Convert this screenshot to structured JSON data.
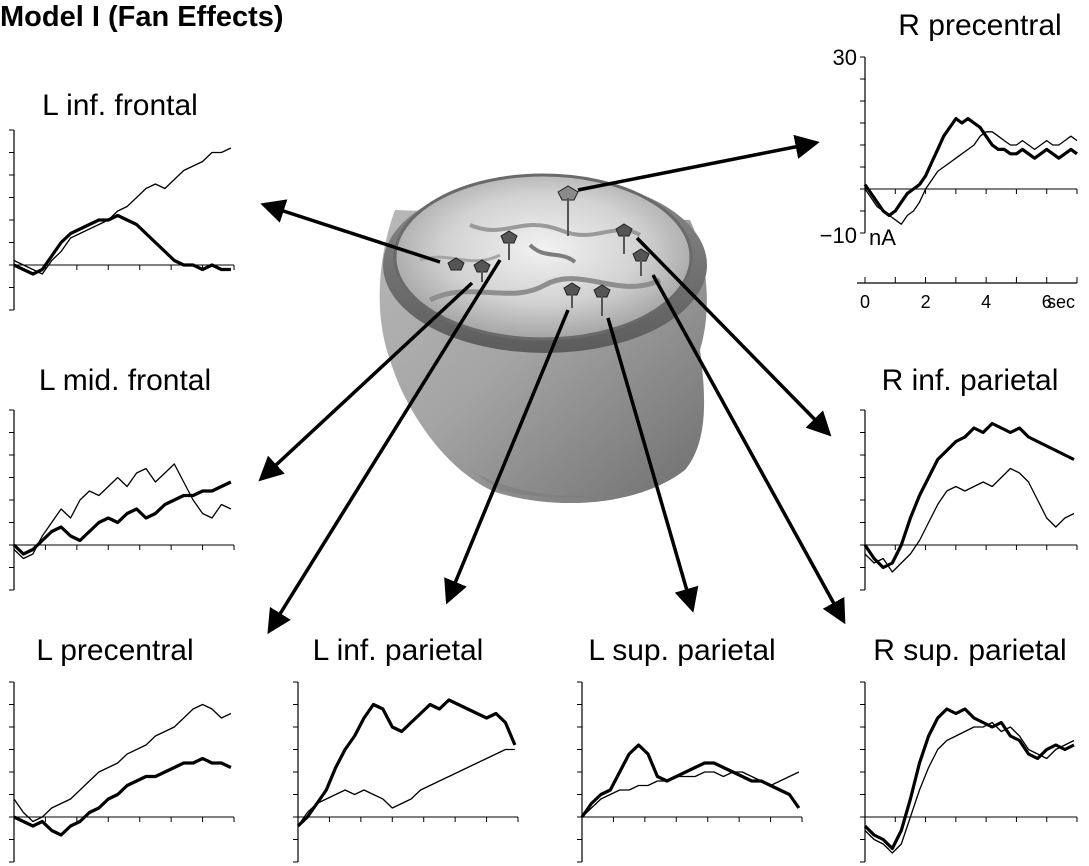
{
  "figure": {
    "title": "Model I (Fan Effects)",
    "line_color": "#000000",
    "brain_icon": "brain-head-icon",
    "legend_note": ""
  },
  "panels": [
    {
      "id": "r-precentral",
      "title": "R precentral",
      "ytick_top": "30",
      "ytick_bottom": "−10",
      "unit": "nA",
      "xticks": [
        "0",
        "2",
        "4",
        "6"
      ],
      "xunit": "sec",
      "ylim": [
        -10,
        30
      ],
      "xlim": [
        0,
        7
      ],
      "series": [
        {
          "x": [
            0,
            0.2,
            0.4,
            0.6,
            0.8,
            1.0,
            1.2,
            1.4,
            1.6,
            1.8,
            2.0,
            2.2,
            2.4,
            2.6,
            2.8,
            3.0,
            3.2,
            3.4,
            3.6,
            3.8,
            4.0,
            4.2,
            4.4,
            4.6,
            4.8,
            5.0,
            5.2,
            5.4,
            5.6,
            5.8,
            6.0,
            6.2,
            6.4,
            6.6,
            6.8,
            7.0
          ],
          "y": [
            1,
            -1,
            -3,
            -5,
            -6,
            -5,
            -3,
            -1,
            0,
            1,
            3,
            6,
            9,
            12,
            14,
            16,
            15,
            16,
            15,
            14,
            12,
            10,
            9,
            9,
            8,
            8,
            9,
            8,
            7,
            8,
            9,
            8,
            7,
            8,
            9,
            8
          ],
          "weight": "thick"
        },
        {
          "x": [
            0,
            0.2,
            0.4,
            0.6,
            0.8,
            1.0,
            1.2,
            1.4,
            1.6,
            1.8,
            2.0,
            2.2,
            2.4,
            2.6,
            2.8,
            3.0,
            3.2,
            3.4,
            3.6,
            3.8,
            4.0,
            4.2,
            4.4,
            4.6,
            4.8,
            5.0,
            5.2,
            5.4,
            5.6,
            5.8,
            6.0,
            6.2,
            6.4,
            6.6,
            6.8,
            7.0
          ],
          "y": [
            0,
            -2,
            -4,
            -5,
            -6,
            -7,
            -8,
            -6,
            -5,
            -3,
            0,
            2,
            4,
            5,
            6,
            7,
            8,
            9,
            10,
            12,
            13,
            13,
            12,
            11,
            10,
            10,
            11,
            10,
            9,
            10,
            11,
            10,
            10,
            11,
            12,
            11
          ],
          "weight": "thin"
        }
      ]
    },
    {
      "id": "l-inf-frontal",
      "title": "L inf. frontal",
      "ylim": [
        -10,
        30
      ],
      "xlim": [
        0,
        7
      ],
      "series": [
        {
          "x": [
            0,
            0.3,
            0.6,
            0.9,
            1.2,
            1.5,
            1.8,
            2.1,
            2.4,
            2.7,
            3.0,
            3.3,
            3.6,
            3.9,
            4.2,
            4.5,
            4.8,
            5.1,
            5.4,
            5.7,
            6.0,
            6.3,
            6.6,
            6.9
          ],
          "y": [
            0,
            -1,
            -2,
            -1,
            2,
            5,
            7,
            8,
            9,
            10,
            10,
            11,
            10,
            9,
            7,
            5,
            3,
            1,
            0,
            0,
            -1,
            0,
            -1,
            -1
          ],
          "weight": "thick"
        },
        {
          "x": [
            0,
            0.3,
            0.6,
            0.9,
            1.2,
            1.5,
            1.8,
            2.1,
            2.4,
            2.7,
            3.0,
            3.3,
            3.6,
            3.9,
            4.2,
            4.5,
            4.8,
            5.1,
            5.4,
            5.7,
            6.0,
            6.3,
            6.6,
            6.9
          ],
          "y": [
            1,
            0,
            -1,
            -2,
            1,
            3,
            6,
            7,
            8,
            9,
            10,
            12,
            13,
            15,
            17,
            18,
            17,
            19,
            21,
            22,
            23,
            25,
            25,
            26
          ],
          "weight": "thin"
        }
      ]
    },
    {
      "id": "l-mid-frontal",
      "title": "L mid. frontal",
      "ylim": [
        -10,
        30
      ],
      "xlim": [
        0,
        7
      ],
      "series": [
        {
          "x": [
            0,
            0.3,
            0.6,
            0.9,
            1.2,
            1.5,
            1.8,
            2.1,
            2.4,
            2.7,
            3.0,
            3.3,
            3.6,
            3.9,
            4.2,
            4.5,
            4.8,
            5.1,
            5.4,
            5.7,
            6.0,
            6.3,
            6.6,
            6.9
          ],
          "y": [
            0,
            -2,
            -1,
            1,
            3,
            4,
            2,
            1,
            3,
            5,
            6,
            5,
            7,
            8,
            6,
            7,
            9,
            10,
            11,
            11,
            12,
            12,
            13,
            14
          ],
          "weight": "thick"
        },
        {
          "x": [
            0,
            0.3,
            0.6,
            0.9,
            1.2,
            1.5,
            1.8,
            2.1,
            2.4,
            2.7,
            3.0,
            3.3,
            3.6,
            3.9,
            4.2,
            4.5,
            4.8,
            5.1,
            5.4,
            5.7,
            6.0,
            6.3,
            6.6,
            6.9
          ],
          "y": [
            -1,
            -3,
            -2,
            2,
            5,
            8,
            6,
            10,
            12,
            11,
            13,
            15,
            13,
            16,
            17,
            14,
            16,
            18,
            14,
            10,
            7,
            6,
            9,
            8
          ],
          "weight": "thin"
        }
      ]
    },
    {
      "id": "r-inf-parietal",
      "title": "R inf. parietal",
      "ylim": [
        -10,
        30
      ],
      "xlim": [
        0,
        7
      ],
      "series": [
        {
          "x": [
            0,
            0.3,
            0.6,
            0.9,
            1.2,
            1.5,
            1.8,
            2.1,
            2.4,
            2.7,
            3.0,
            3.3,
            3.6,
            3.9,
            4.2,
            4.5,
            4.8,
            5.1,
            5.4,
            5.7,
            6.0,
            6.3,
            6.6,
            6.9
          ],
          "y": [
            0,
            -3,
            -5,
            -4,
            0,
            6,
            11,
            15,
            19,
            21,
            23,
            24,
            26,
            25,
            27,
            26,
            25,
            26,
            24,
            23,
            22,
            21,
            20,
            19
          ],
          "weight": "thick"
        },
        {
          "x": [
            0,
            0.3,
            0.6,
            0.9,
            1.2,
            1.5,
            1.8,
            2.1,
            2.4,
            2.7,
            3.0,
            3.3,
            3.6,
            3.9,
            4.2,
            4.5,
            4.8,
            5.1,
            5.4,
            5.7,
            6.0,
            6.3,
            6.6,
            6.9
          ],
          "y": [
            -2,
            -4,
            -3,
            -6,
            -4,
            -2,
            1,
            5,
            9,
            12,
            13,
            12,
            13,
            14,
            13,
            15,
            17,
            16,
            14,
            10,
            6,
            4,
            6,
            7
          ],
          "weight": "thin"
        }
      ]
    },
    {
      "id": "l-precentral",
      "title": "L precentral",
      "ylim": [
        -10,
        30
      ],
      "xlim": [
        0,
        7
      ],
      "series": [
        {
          "x": [
            0,
            0.3,
            0.6,
            0.9,
            1.2,
            1.5,
            1.8,
            2.1,
            2.4,
            2.7,
            3.0,
            3.3,
            3.6,
            3.9,
            4.2,
            4.5,
            4.8,
            5.1,
            5.4,
            5.7,
            6.0,
            6.3,
            6.6,
            6.9
          ],
          "y": [
            0,
            -1,
            -2,
            -1,
            -3,
            -4,
            -2,
            -1,
            1,
            2,
            4,
            5,
            7,
            8,
            9,
            9,
            10,
            11,
            12,
            12,
            13,
            12,
            12,
            11
          ],
          "weight": "thick"
        },
        {
          "x": [
            0,
            0.3,
            0.6,
            0.9,
            1.2,
            1.5,
            1.8,
            2.1,
            2.4,
            2.7,
            3.0,
            3.3,
            3.6,
            3.9,
            4.2,
            4.5,
            4.8,
            5.1,
            5.4,
            5.7,
            6.0,
            6.3,
            6.6,
            6.9
          ],
          "y": [
            4,
            1,
            -1,
            0,
            2,
            3,
            4,
            6,
            8,
            10,
            11,
            12,
            14,
            15,
            16,
            18,
            19,
            20,
            22,
            24,
            25,
            24,
            22,
            23
          ],
          "weight": "thin"
        }
      ]
    },
    {
      "id": "l-inf-parietal",
      "title": "L inf. parietal",
      "ylim": [
        -10,
        30
      ],
      "xlim": [
        0,
        7
      ],
      "series": [
        {
          "x": [
            0,
            0.3,
            0.6,
            0.9,
            1.2,
            1.5,
            1.8,
            2.1,
            2.4,
            2.7,
            3.0,
            3.3,
            3.6,
            3.9,
            4.2,
            4.5,
            4.8,
            5.1,
            5.4,
            5.7,
            6.0,
            6.3,
            6.6,
            6.9
          ],
          "y": [
            -2,
            0,
            3,
            6,
            11,
            15,
            18,
            22,
            25,
            24,
            20,
            19,
            21,
            23,
            25,
            24,
            26,
            25,
            24,
            23,
            22,
            23,
            21,
            16
          ],
          "weight": "thick"
        },
        {
          "x": [
            0,
            0.3,
            0.6,
            0.9,
            1.2,
            1.5,
            1.8,
            2.1,
            2.4,
            2.7,
            3.0,
            3.3,
            3.6,
            3.9,
            4.2,
            4.5,
            4.8,
            5.1,
            5.4,
            5.7,
            6.0,
            6.3,
            6.6,
            6.9
          ],
          "y": [
            -2,
            1,
            3,
            4,
            5,
            6,
            5,
            6,
            5,
            4,
            2,
            3,
            4,
            6,
            7,
            8,
            9,
            10,
            11,
            12,
            13,
            14,
            15,
            15
          ],
          "weight": "thin"
        }
      ]
    },
    {
      "id": "l-sup-parietal",
      "title": "L sup. parietal",
      "ylim": [
        -10,
        30
      ],
      "xlim": [
        0,
        7
      ],
      "series": [
        {
          "x": [
            0,
            0.3,
            0.6,
            0.9,
            1.2,
            1.5,
            1.8,
            2.1,
            2.4,
            2.7,
            3.0,
            3.3,
            3.6,
            3.9,
            4.2,
            4.5,
            4.8,
            5.1,
            5.4,
            5.7,
            6.0,
            6.3,
            6.6,
            6.9
          ],
          "y": [
            0,
            3,
            5,
            6,
            10,
            14,
            16,
            14,
            9,
            8,
            9,
            10,
            11,
            12,
            12,
            11,
            10,
            9,
            8,
            8,
            7,
            6,
            5,
            2
          ],
          "weight": "thick"
        },
        {
          "x": [
            0,
            0.3,
            0.6,
            0.9,
            1.2,
            1.5,
            1.8,
            2.1,
            2.4,
            2.7,
            3.0,
            3.3,
            3.6,
            3.9,
            4.2,
            4.5,
            4.8,
            5.1,
            5.4,
            5.7,
            6.0,
            6.3,
            6.6,
            6.9
          ],
          "y": [
            0,
            2,
            4,
            5,
            6,
            6,
            7,
            7,
            8,
            8,
            9,
            9,
            9,
            10,
            10,
            9,
            10,
            10,
            9,
            8,
            7,
            8,
            9,
            10
          ],
          "weight": "thin"
        }
      ]
    },
    {
      "id": "r-sup-parietal",
      "title": "R sup. parietal",
      "ylim": [
        -10,
        30
      ],
      "xlim": [
        0,
        7
      ],
      "series": [
        {
          "x": [
            0,
            0.3,
            0.6,
            0.9,
            1.2,
            1.5,
            1.8,
            2.1,
            2.4,
            2.7,
            3.0,
            3.3,
            3.6,
            3.9,
            4.2,
            4.5,
            4.8,
            5.1,
            5.4,
            5.7,
            6.0,
            6.3,
            6.6,
            6.9
          ],
          "y": [
            -2,
            -4,
            -5,
            -7,
            -3,
            4,
            12,
            18,
            22,
            24,
            23,
            24,
            22,
            21,
            20,
            21,
            18,
            17,
            14,
            13,
            15,
            16,
            15,
            16
          ],
          "weight": "thick"
        },
        {
          "x": [
            0,
            0.3,
            0.6,
            0.9,
            1.2,
            1.5,
            1.8,
            2.1,
            2.4,
            2.7,
            3.0,
            3.3,
            3.6,
            3.9,
            4.2,
            4.5,
            4.8,
            5.1,
            5.4,
            5.7,
            6.0,
            6.3,
            6.6,
            6.9
          ],
          "y": [
            -3,
            -5,
            -6,
            -8,
            -6,
            0,
            6,
            11,
            15,
            17,
            18,
            19,
            20,
            20,
            21,
            19,
            20,
            18,
            15,
            14,
            13,
            15,
            16,
            17
          ],
          "weight": "thin"
        }
      ]
    }
  ]
}
